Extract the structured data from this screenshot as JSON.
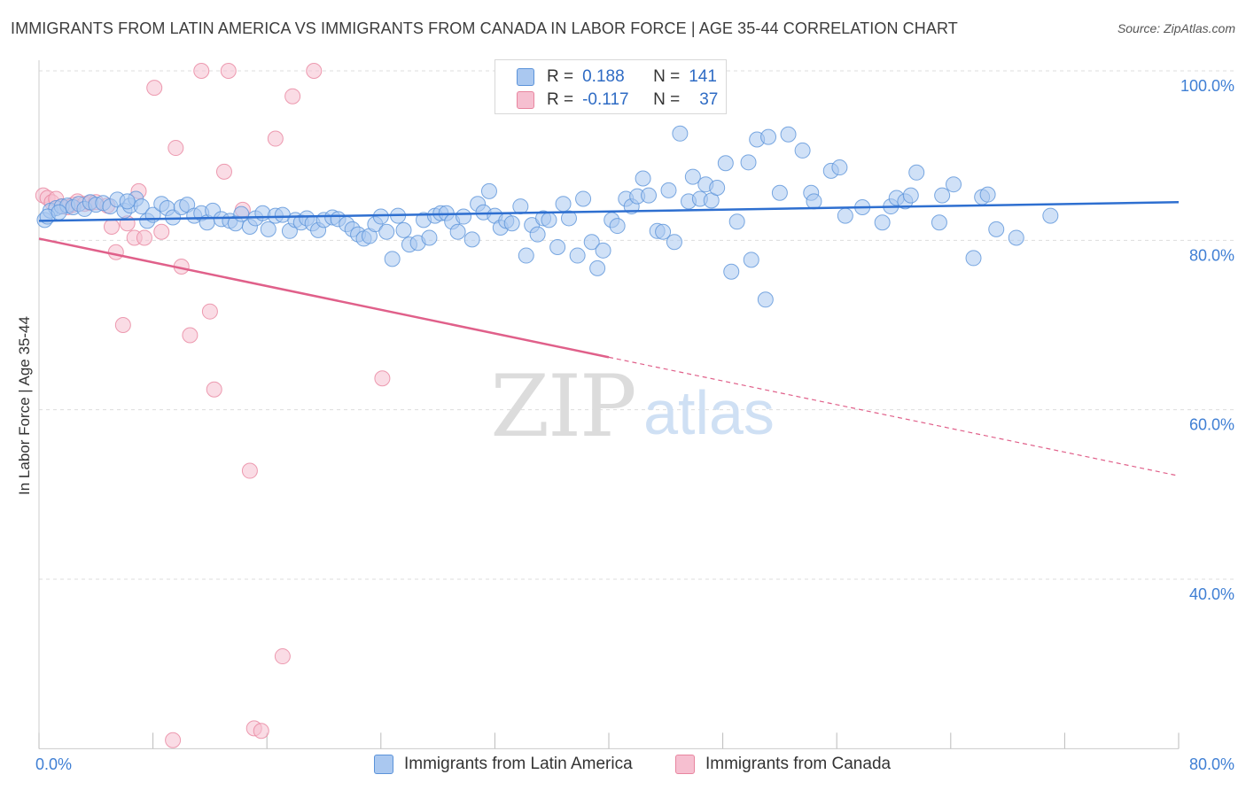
{
  "header": {
    "title": "IMMIGRANTS FROM LATIN AMERICA VS IMMIGRANTS FROM CANADA IN LABOR FORCE | AGE 35-44 CORRELATION CHART",
    "source": "Source: ZipAtlas.com"
  },
  "legend": {
    "rows": [
      {
        "r_label": "R =",
        "r_value": "0.188",
        "n_label": "N =",
        "n_value": "141"
      },
      {
        "r_label": "R =",
        "r_value": "-0.117",
        "n_label": "N =",
        "n_value": "37"
      }
    ]
  },
  "bottom_legend": {
    "latin": "Immigrants from Latin America",
    "canada": "Immigrants from Canada"
  },
  "watermark": {
    "zip": "ZIP",
    "atlas": "atlas"
  },
  "colors": {
    "latin_fill": "#aac8f0",
    "latin_stroke": "#5b93d9",
    "latin_line": "#2e6fd0",
    "canada_fill": "#f6bfd0",
    "canada_stroke": "#e8859f",
    "canada_line": "#e0608a",
    "tick_label": "#3f7fd4",
    "grid": "#dddddd"
  },
  "chart_data": {
    "type": "scatter",
    "title": "IMMIGRANTS FROM LATIN AMERICA VS IMMIGRANTS FROM CANADA IN LABOR FORCE | AGE 35-44 CORRELATION CHART",
    "xlabel": "",
    "ylabel": "In Labor Force | Age 35-44",
    "xlim": [
      0,
      80
    ],
    "ylim": [
      20,
      102
    ],
    "x_tick_labels": [
      {
        "value": 0,
        "label": "0.0%"
      },
      {
        "value": 80,
        "label": "80.0%"
      }
    ],
    "y_tick_labels": [
      {
        "value": 40,
        "label": "40.0%"
      },
      {
        "value": 60,
        "label": "60.0%"
      },
      {
        "value": 80,
        "label": "80.0%"
      },
      {
        "value": 100,
        "label": "100.0%"
      }
    ],
    "x_minor_ticks": [
      0,
      8,
      16,
      24,
      32,
      40,
      48,
      56,
      64,
      72,
      80
    ],
    "grid": true,
    "series": [
      {
        "name": "Immigrants from Latin America",
        "trend": {
          "x0": 0,
          "y0": 82.3,
          "x1": 80,
          "y1": 84.5,
          "dashed_from": null
        },
        "points": [
          [
            0.4,
            82.4
          ],
          [
            0.8,
            83.5
          ],
          [
            1.2,
            83.8
          ],
          [
            1.6,
            84.0
          ],
          [
            2.0,
            84.1
          ],
          [
            2.4,
            83.9
          ],
          [
            2.8,
            84.3
          ],
          [
            3.2,
            83.7
          ],
          [
            3.6,
            84.5
          ],
          [
            4.0,
            84.2
          ],
          [
            4.5,
            84.4
          ],
          [
            5.0,
            84.0
          ],
          [
            5.5,
            84.8
          ],
          [
            6.0,
            83.5
          ],
          [
            6.4,
            84.1
          ],
          [
            6.8,
            84.9
          ],
          [
            7.2,
            84.0
          ],
          [
            7.6,
            82.3
          ],
          [
            8.0,
            83.0
          ],
          [
            8.6,
            84.3
          ],
          [
            9.0,
            83.8
          ],
          [
            9.4,
            82.7
          ],
          [
            10.0,
            83.9
          ],
          [
            10.4,
            84.2
          ],
          [
            10.9,
            82.9
          ],
          [
            11.4,
            83.2
          ],
          [
            11.8,
            82.1
          ],
          [
            12.2,
            83.5
          ],
          [
            12.8,
            82.5
          ],
          [
            13.4,
            82.3
          ],
          [
            13.8,
            82.0
          ],
          [
            14.2,
            83.1
          ],
          [
            14.8,
            81.6
          ],
          [
            15.2,
            82.6
          ],
          [
            15.7,
            83.2
          ],
          [
            16.1,
            81.3
          ],
          [
            16.6,
            82.9
          ],
          [
            17.1,
            83.0
          ],
          [
            17.6,
            81.1
          ],
          [
            18.0,
            82.4
          ],
          [
            18.4,
            82.1
          ],
          [
            18.8,
            82.6
          ],
          [
            19.2,
            82.0
          ],
          [
            19.6,
            81.2
          ],
          [
            20.0,
            82.4
          ],
          [
            20.6,
            82.7
          ],
          [
            21.0,
            82.5
          ],
          [
            21.6,
            81.9
          ],
          [
            22.0,
            81.3
          ],
          [
            22.4,
            80.7
          ],
          [
            22.8,
            80.2
          ],
          [
            23.2,
            80.5
          ],
          [
            23.6,
            81.9
          ],
          [
            24.0,
            82.8
          ],
          [
            24.4,
            81.0
          ],
          [
            24.8,
            77.8
          ],
          [
            25.2,
            82.9
          ],
          [
            25.6,
            81.2
          ],
          [
            26.0,
            79.5
          ],
          [
            26.6,
            79.7
          ],
          [
            27.0,
            82.4
          ],
          [
            27.4,
            80.3
          ],
          [
            27.8,
            82.9
          ],
          [
            28.2,
            83.2
          ],
          [
            28.6,
            83.2
          ],
          [
            29.0,
            82.2
          ],
          [
            29.4,
            81.0
          ],
          [
            29.8,
            82.8
          ],
          [
            30.4,
            80.1
          ],
          [
            30.8,
            84.3
          ],
          [
            31.2,
            83.3
          ],
          [
            31.6,
            85.8
          ],
          [
            32.0,
            82.9
          ],
          [
            32.4,
            81.5
          ],
          [
            32.8,
            82.3
          ],
          [
            33.2,
            82.0
          ],
          [
            33.8,
            84.0
          ],
          [
            34.2,
            78.2
          ],
          [
            34.6,
            81.8
          ],
          [
            35.0,
            80.7
          ],
          [
            35.4,
            82.6
          ],
          [
            35.8,
            82.4
          ],
          [
            36.4,
            79.2
          ],
          [
            36.8,
            84.3
          ],
          [
            37.2,
            82.6
          ],
          [
            37.8,
            78.2
          ],
          [
            38.2,
            84.9
          ],
          [
            38.8,
            79.8
          ],
          [
            39.2,
            76.7
          ],
          [
            39.6,
            78.8
          ],
          [
            40.2,
            82.4
          ],
          [
            40.6,
            81.7
          ],
          [
            41.2,
            84.9
          ],
          [
            41.6,
            84.0
          ],
          [
            42.0,
            85.2
          ],
          [
            42.4,
            87.3
          ],
          [
            42.8,
            85.3
          ],
          [
            43.4,
            81.1
          ],
          [
            43.8,
            81.0
          ],
          [
            44.2,
            85.9
          ],
          [
            44.6,
            79.8
          ],
          [
            45.0,
            92.6
          ],
          [
            45.6,
            84.6
          ],
          [
            45.9,
            87.5
          ],
          [
            46.4,
            84.9
          ],
          [
            46.8,
            86.6
          ],
          [
            47.2,
            84.7
          ],
          [
            47.6,
            86.2
          ],
          [
            48.2,
            89.1
          ],
          [
            48.6,
            76.3
          ],
          [
            49.0,
            82.2
          ],
          [
            49.8,
            89.2
          ],
          [
            50.0,
            77.7
          ],
          [
            50.4,
            91.9
          ],
          [
            51.0,
            73.0
          ],
          [
            51.2,
            92.2
          ],
          [
            52.0,
            85.6
          ],
          [
            52.6,
            92.5
          ],
          [
            53.6,
            90.6
          ],
          [
            54.2,
            85.6
          ],
          [
            54.4,
            84.6
          ],
          [
            55.6,
            88.2
          ],
          [
            56.2,
            88.6
          ],
          [
            56.6,
            82.9
          ],
          [
            57.8,
            83.9
          ],
          [
            59.2,
            82.1
          ],
          [
            59.8,
            84.0
          ],
          [
            60.2,
            85.0
          ],
          [
            60.8,
            84.6
          ],
          [
            61.2,
            85.3
          ],
          [
            61.6,
            88.0
          ],
          [
            63.2,
            82.1
          ],
          [
            63.4,
            85.3
          ],
          [
            64.2,
            86.6
          ],
          [
            65.6,
            77.9
          ],
          [
            66.2,
            85.1
          ],
          [
            66.6,
            85.4
          ],
          [
            67.2,
            81.3
          ],
          [
            68.6,
            80.3
          ],
          [
            71.0,
            82.9
          ],
          [
            0.6,
            82.8
          ],
          [
            1.4,
            83.3
          ],
          [
            6.2,
            84.6
          ]
        ]
      },
      {
        "name": "Immigrants from Canada",
        "trend": {
          "x0": 0,
          "y0": 80.2,
          "x1": 80,
          "y1": 52.2,
          "dashed_from": 40
        },
        "points": [
          [
            0.3,
            85.3
          ],
          [
            0.6,
            85.0
          ],
          [
            0.9,
            84.5
          ],
          [
            1.2,
            84.9
          ],
          [
            1.6,
            84.0
          ],
          [
            2.0,
            83.9
          ],
          [
            2.4,
            84.2
          ],
          [
            2.7,
            84.6
          ],
          [
            3.2,
            84.3
          ],
          [
            3.6,
            84.4
          ],
          [
            4.0,
            84.5
          ],
          [
            4.8,
            84.1
          ],
          [
            5.1,
            81.6
          ],
          [
            5.4,
            78.6
          ],
          [
            5.9,
            70.0
          ],
          [
            6.2,
            82.0
          ],
          [
            6.7,
            80.3
          ],
          [
            7.0,
            85.8
          ],
          [
            7.4,
            80.3
          ],
          [
            8.1,
            98.0
          ],
          [
            8.6,
            81.0
          ],
          [
            9.6,
            90.9
          ],
          [
            10.0,
            76.9
          ],
          [
            10.6,
            68.8
          ],
          [
            11.4,
            100.0
          ],
          [
            12.0,
            71.6
          ],
          [
            12.3,
            62.4
          ],
          [
            13.0,
            88.1
          ],
          [
            13.3,
            100.0
          ],
          [
            14.3,
            83.6
          ],
          [
            14.8,
            52.8
          ],
          [
            15.1,
            22.4
          ],
          [
            15.6,
            22.1
          ],
          [
            16.6,
            92.0
          ],
          [
            17.1,
            30.9
          ],
          [
            17.8,
            97.0
          ],
          [
            19.3,
            100.0
          ],
          [
            24.1,
            63.7
          ],
          [
            9.4,
            21.0
          ]
        ]
      }
    ]
  }
}
